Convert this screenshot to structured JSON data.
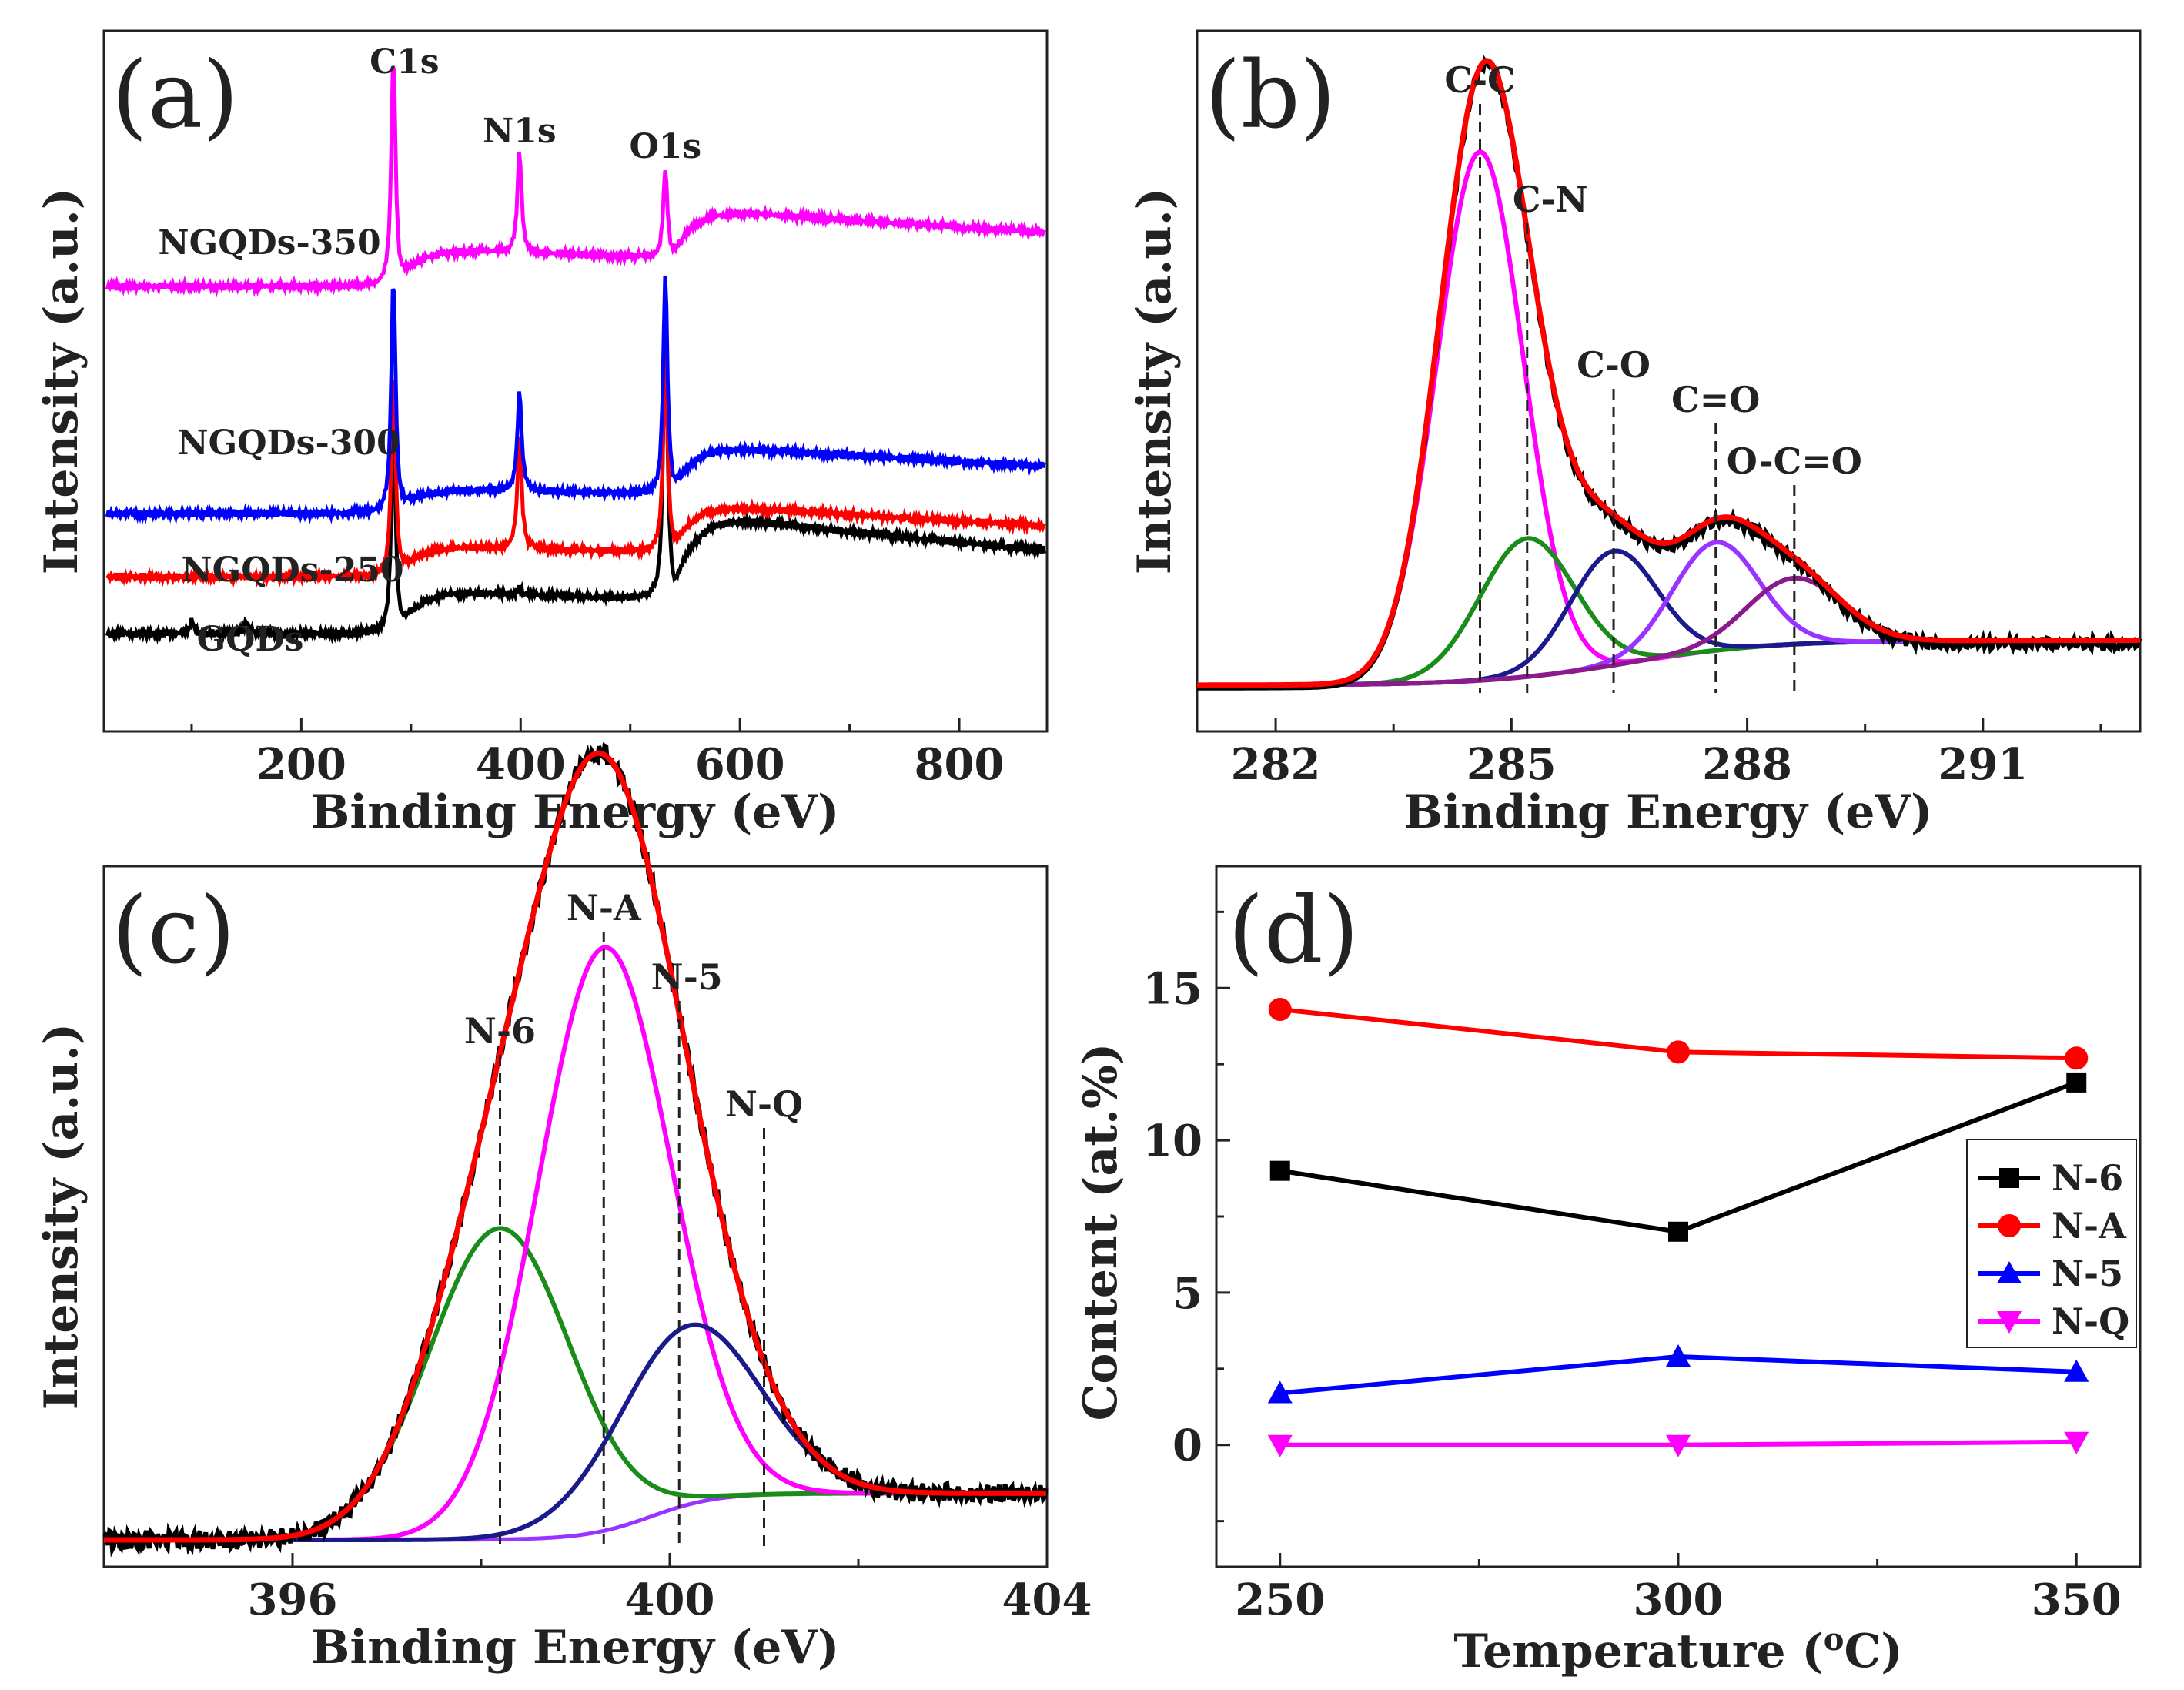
{
  "chart_data": [
    {
      "panel": "(a)",
      "type": "line",
      "xlabel": "Binding Energy (eV)",
      "ylabel": "Intensity (a.u.)",
      "xlim": [
        20,
        880
      ],
      "xticks": [
        "200",
        "400",
        "600",
        "800"
      ],
      "peak_labels": [
        "C1s",
        "N1s",
        "O1s"
      ],
      "series": [
        {
          "name": "GQDs",
          "color": "#000000",
          "baseline": 0.1,
          "peaks": [
            [
              100,
              0.02
            ],
            [
              150,
              0.02
            ],
            [
              284,
              0.34
            ],
            [
              399,
              0.01
            ],
            [
              532,
              0.45
            ]
          ],
          "step": [
            [
              290,
              0.07
            ],
            [
              540,
              0.14
            ]
          ]
        },
        {
          "name": "NGQDs-250",
          "color": "#ff0000",
          "baseline": 0.19,
          "peaks": [
            [
              284,
              0.33
            ],
            [
              399,
              0.18
            ],
            [
              532,
              0.33
            ]
          ],
          "step": [
            [
              290,
              0.05
            ],
            [
              540,
              0.08
            ]
          ]
        },
        {
          "name": "NGQDs-300",
          "color": "#0000ff",
          "baseline": 0.29,
          "peaks": [
            [
              284,
              0.38
            ],
            [
              399,
              0.16
            ],
            [
              532,
              0.35
            ]
          ],
          "step": [
            [
              290,
              0.04
            ],
            [
              540,
              0.08
            ]
          ]
        },
        {
          "name": "NGQDs-350",
          "color": "#ff00ff",
          "baseline": 0.65,
          "peaks": [
            [
              284,
              0.37
            ],
            [
              399,
              0.16
            ],
            [
              532,
              0.14
            ]
          ],
          "step": [
            [
              290,
              0.06
            ],
            [
              540,
              0.08
            ]
          ]
        }
      ]
    },
    {
      "panel": "(b)",
      "type": "line",
      "xlabel": "Binding Energy (eV)",
      "ylabel": "Intensity (a.u.)",
      "xlim": [
        281,
        293
      ],
      "xticks": [
        "282",
        "285",
        "288",
        "291"
      ],
      "peak_labels": [
        {
          "label": "C-C",
          "x": 284.6
        },
        {
          "label": "C-N",
          "x": 285.2
        },
        {
          "label": "C-O",
          "x": 286.3
        },
        {
          "label": "C=O",
          "x": 287.6
        },
        {
          "label": "O-C=O",
          "x": 288.6
        }
      ],
      "series": [
        {
          "name": "C-C",
          "color": "#ff00ff",
          "center": 284.6,
          "height": 0.88,
          "width": 0.55
        },
        {
          "name": "C-N",
          "color": "#1a8c1a",
          "center": 285.2,
          "height": 0.23,
          "width": 0.6
        },
        {
          "name": "C-O",
          "color": "#1a1a8c",
          "center": 286.3,
          "height": 0.19,
          "width": 0.55
        },
        {
          "name": "C=O",
          "color": "#9933ff",
          "center": 287.6,
          "height": 0.18,
          "width": 0.55
        },
        {
          "name": "O-C=O",
          "color": "#8b1a8b",
          "center": 288.6,
          "height": 0.11,
          "width": 0.6
        }
      ]
    },
    {
      "panel": "(c)",
      "type": "line",
      "xlabel": "Binding Energy (eV)",
      "ylabel": "Intensity (a.u.)",
      "xlim": [
        394,
        404
      ]
    },
    {
      "panel": "(d)",
      "type": "line",
      "title": "",
      "xlabel": "Temperature (",
      "ylabel": "Content (at.%)",
      "categories": [
        "250",
        "300",
        "350"
      ],
      "x": [
        250,
        300,
        350
      ],
      "ylim": [
        -4,
        19
      ],
      "yticks": [
        "0",
        "5",
        "10",
        "15"
      ],
      "series": [
        {
          "name": "N-6",
          "color": "#000000",
          "marker": "square",
          "values": [
            9.0,
            7.0,
            11.9
          ]
        },
        {
          "name": "N-A",
          "color": "#ff0000",
          "marker": "circle",
          "values": [
            14.3,
            12.9,
            12.7
          ]
        },
        {
          "name": "N-5",
          "color": "#0000ff",
          "marker": "triangle-up",
          "values": [
            1.7,
            2.9,
            2.4
          ]
        },
        {
          "name": "N-Q",
          "color": "#ff00ff",
          "marker": "triangle-down",
          "values": [
            0.0,
            0.0,
            0.1
          ]
        }
      ]
    }
  ],
  "panel_c_extra": {
    "xticks": [
      "396",
      "400",
      "404"
    ],
    "peak_labels": [
      {
        "label": "N-6",
        "x": 398.2
      },
      {
        "label": "N-A",
        "x": 399.3
      },
      {
        "label": "N-5",
        "x": 400.1
      },
      {
        "label": "N-Q",
        "x": 401.0
      }
    ],
    "series": [
      {
        "name": "N-6",
        "color": "#1a8c1a",
        "center": 398.2,
        "height": 0.4,
        "width": 0.75
      },
      {
        "name": "N-A",
        "color": "#ff00ff",
        "center": 399.3,
        "height": 0.75,
        "width": 0.7
      },
      {
        "name": "N-5",
        "color": "#1a1a8c",
        "center": 400.2,
        "height": 0.23,
        "width": 0.75
      }
    ]
  },
  "degree_unit": {
    "sup": "o",
    "letter": "C)"
  }
}
